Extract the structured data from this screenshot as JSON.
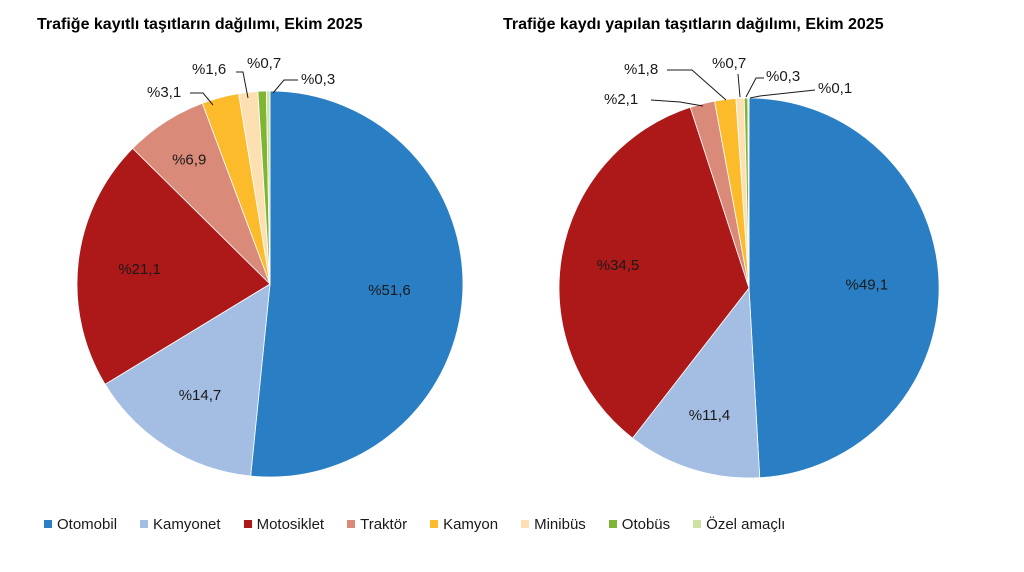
{
  "chart_data": [
    {
      "type": "pie",
      "title": "Trafiğe kayıtlı taşıtların dağılımı, Ekim 2025",
      "categories": [
        "Otomobil",
        "Kamyonet",
        "Motosiklet",
        "Traktör",
        "Kamyon",
        "Minibüs",
        "Otobüs",
        "Özel amaçlı"
      ],
      "values": [
        51.6,
        14.7,
        21.1,
        6.9,
        3.1,
        1.6,
        0.7,
        0.3
      ],
      "labels": [
        "%51,6",
        "%14,7",
        "%21,1",
        "%6,9",
        "%3,1",
        "%1,6",
        "%0,7",
        "%0,3"
      ]
    },
    {
      "type": "pie",
      "title": "Trafiğe kaydı yapılan taşıtların dağılımı, Ekim 2025",
      "categories": [
        "Otomobil",
        "Kamyonet",
        "Motosiklet",
        "Traktör",
        "Kamyon",
        "Minibüs",
        "Otobüs",
        "Özel amaçlı"
      ],
      "values": [
        49.1,
        11.4,
        34.5,
        2.1,
        1.8,
        0.7,
        0.3,
        0.1
      ],
      "labels": [
        "%49,1",
        "%11,4",
        "%34,5",
        "%2,1",
        "%1,8",
        "%0,7",
        "%0,3",
        "%0,1"
      ]
    }
  ],
  "legend": {
    "placement": "bottom",
    "items": [
      {
        "label": "Otomobil",
        "color": "#2a7fc4"
      },
      {
        "label": "Kamyonet",
        "color": "#a3bde3"
      },
      {
        "label": "Motosiklet",
        "color": "#ad1818"
      },
      {
        "label": "Traktör",
        "color": "#d98a78"
      },
      {
        "label": "Kamyon",
        "color": "#fbbb2a"
      },
      {
        "label": "Minibüs",
        "color": "#fce0b2"
      },
      {
        "label": "Otobüs",
        "color": "#7fb532"
      },
      {
        "label": "Özel amaçlı",
        "color": "#cde3a4"
      }
    ]
  }
}
